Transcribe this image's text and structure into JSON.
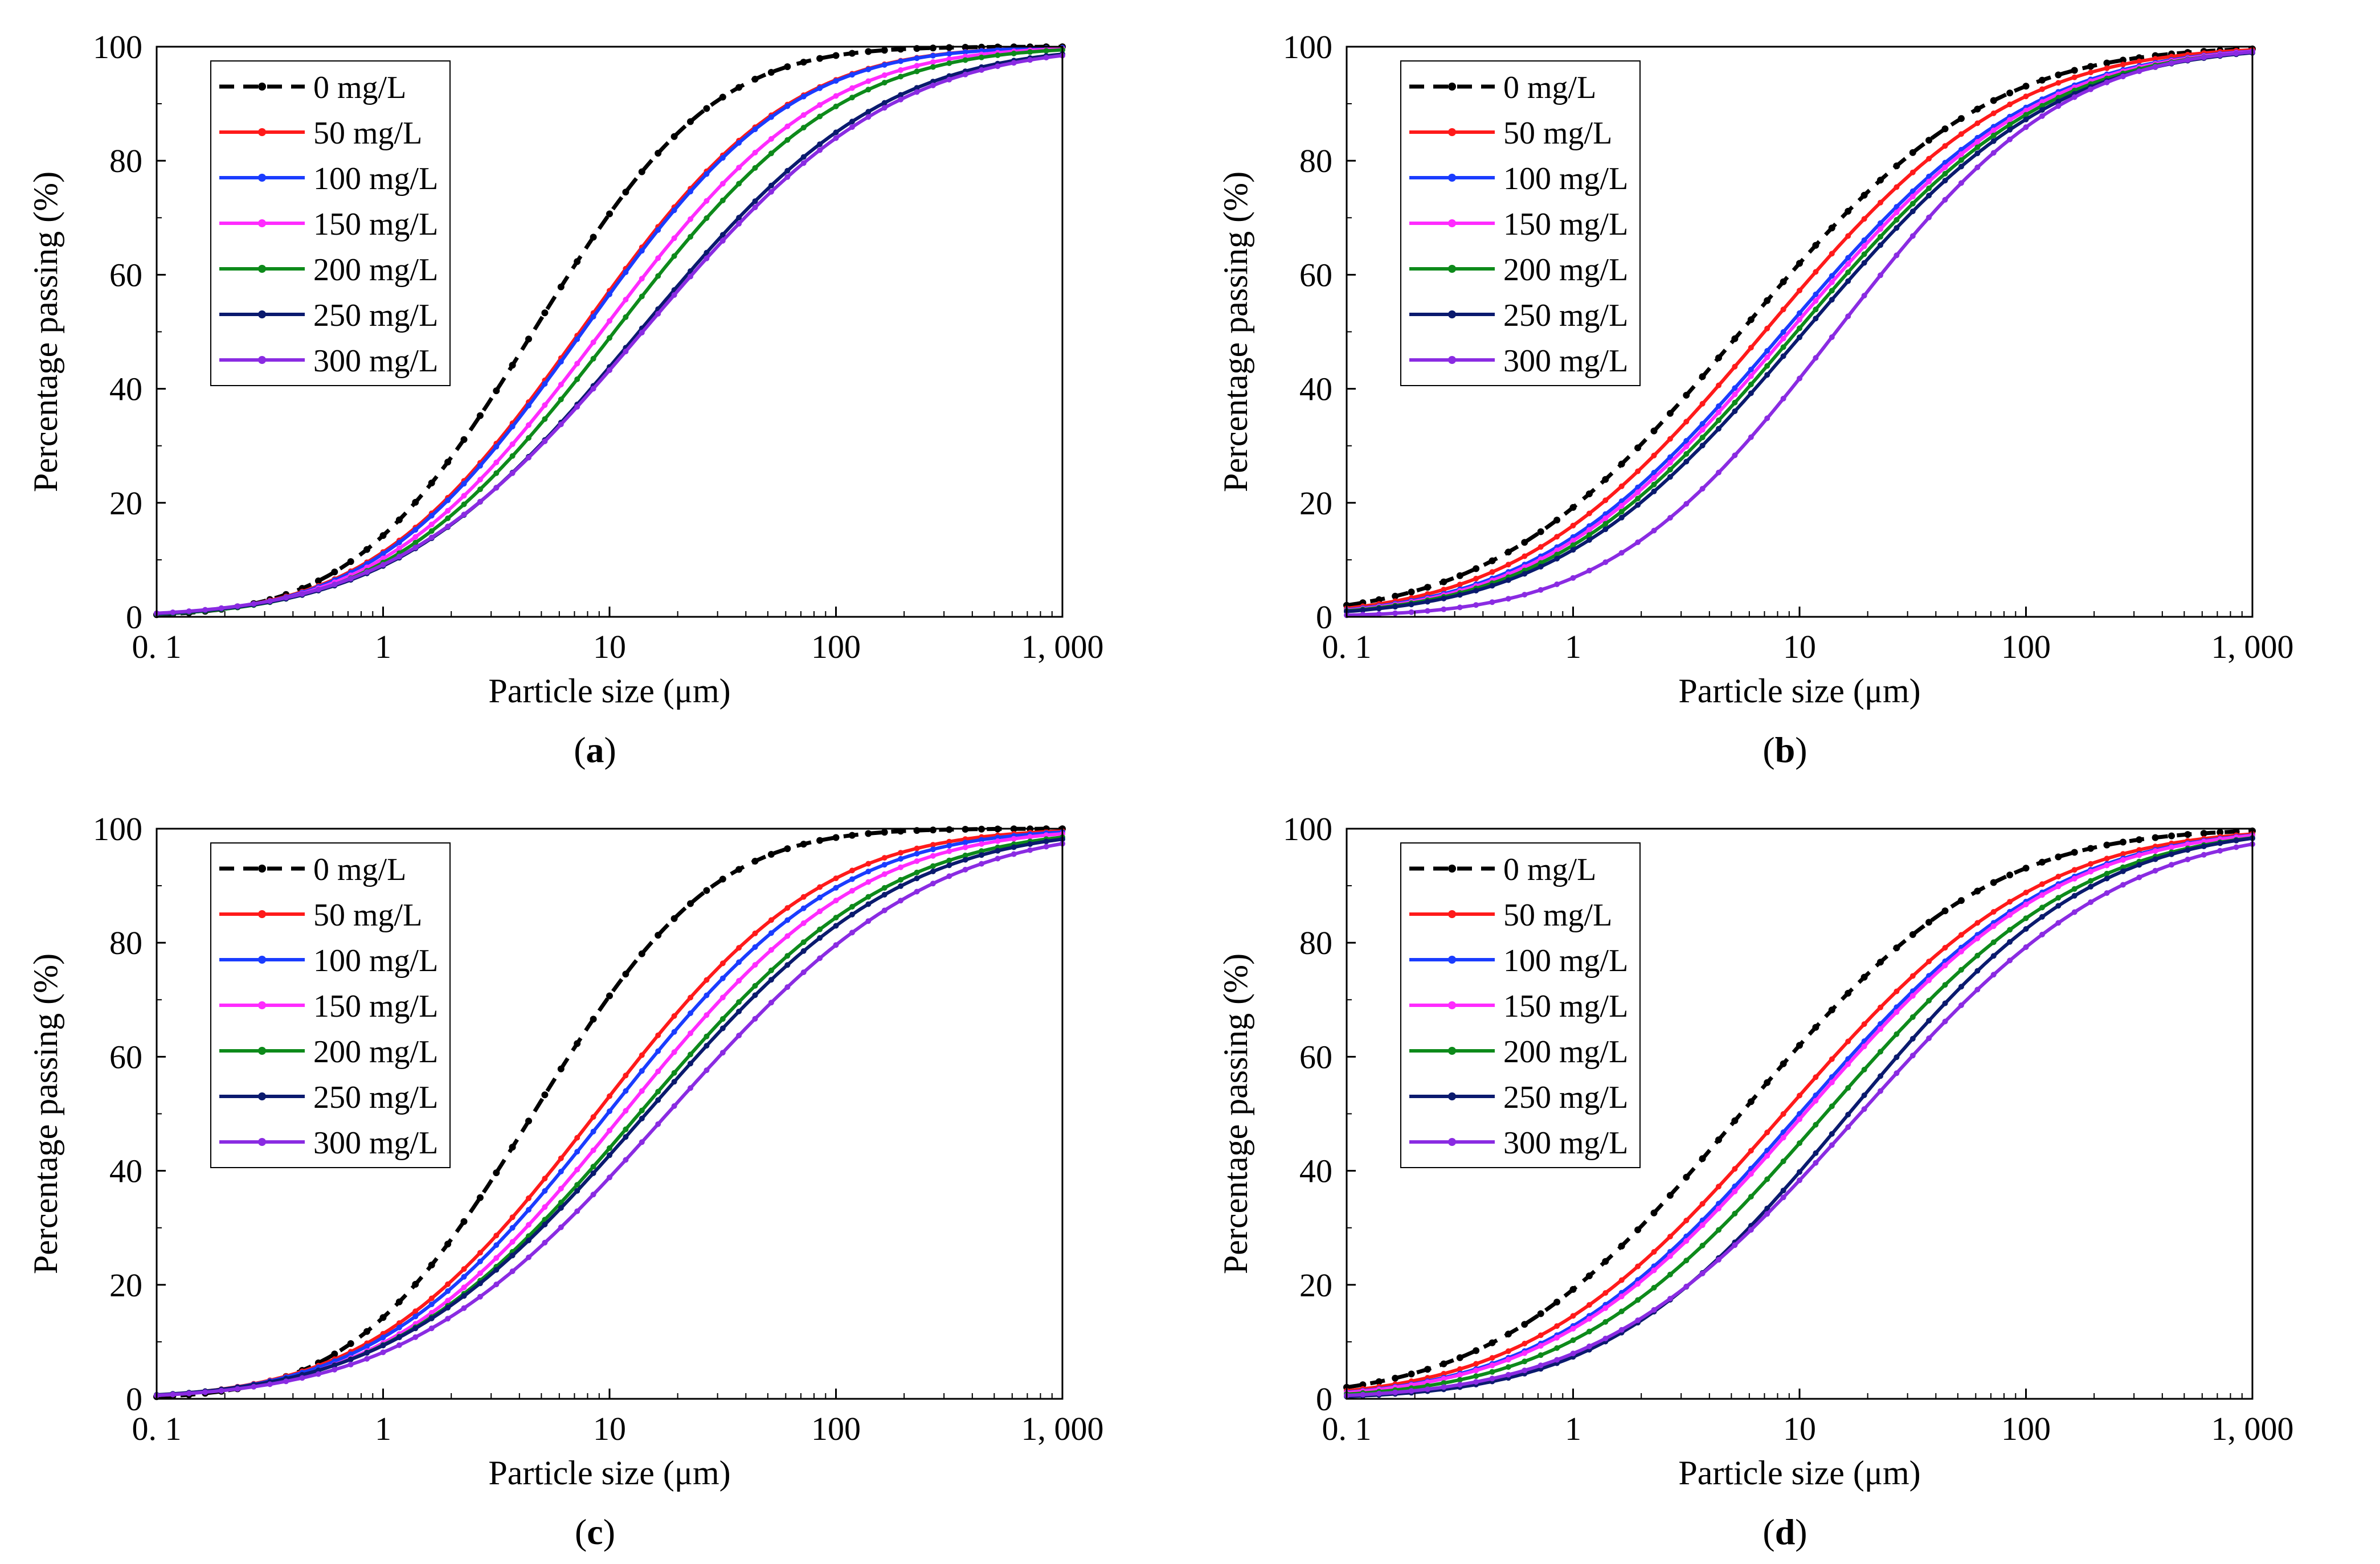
{
  "series_styles": [
    {
      "name": "0 mg/L",
      "color": "#000000",
      "dash": true
    },
    {
      "name": "50 mg/L",
      "color": "#ff1a1a",
      "dash": false
    },
    {
      "name": "100 mg/L",
      "color": "#1a3cff",
      "dash": false
    },
    {
      "name": "150 mg/L",
      "color": "#ff2bff",
      "dash": false
    },
    {
      "name": "200 mg/L",
      "color": "#0d8a1a",
      "dash": false
    },
    {
      "name": "250 mg/L",
      "color": "#0a1a6e",
      "dash": false
    },
    {
      "name": "300 mg/L",
      "color": "#8a2be2",
      "dash": false
    }
  ],
  "chart_data": [
    {
      "panel": "a",
      "caption": "a",
      "type": "line",
      "xlabel": "Particle size (μm)",
      "ylabel": "Percentage passing (%)",
      "xscale": "log",
      "xlim": [
        0.1,
        1000
      ],
      "ylim": [
        0,
        100
      ],
      "xticks": [
        0.1,
        1,
        10,
        100,
        1000
      ],
      "xtick_labels": [
        "0. 1",
        "1",
        "10",
        "100",
        "1, 000"
      ],
      "yticks": [
        0,
        20,
        40,
        60,
        80,
        100
      ],
      "ytick_labels": [
        "0",
        "20",
        "40",
        "60",
        "80",
        "100"
      ],
      "legend": "top-left",
      "series": [
        {
          "name": "0 mg/L",
          "d50": 4.6,
          "s": 0.62
        },
        {
          "name": "50 mg/L",
          "d50": 7.4,
          "s": 0.72
        },
        {
          "name": "100 mg/L",
          "d50": 7.6,
          "s": 0.72
        },
        {
          "name": "150 mg/L",
          "d50": 9.2,
          "s": 0.76
        },
        {
          "name": "200 mg/L",
          "d50": 10.5,
          "s": 0.78
        },
        {
          "name": "250 mg/L",
          "d50": 13.5,
          "s": 0.84
        },
        {
          "name": "300 mg/L",
          "d50": 14.0,
          "s": 0.86
        }
      ]
    },
    {
      "panel": "b",
      "caption": "b",
      "type": "line",
      "xlabel": "Particle size (μm)",
      "ylabel": "Percentage passing (%)",
      "xscale": "log",
      "xlim": [
        0.1,
        1000
      ],
      "ylim": [
        0,
        100
      ],
      "xticks": [
        0.1,
        1,
        10,
        100,
        1000
      ],
      "xtick_labels": [
        "0. 1",
        "1",
        "10",
        "100",
        "1, 000"
      ],
      "yticks": [
        0,
        20,
        40,
        60,
        80,
        100
      ],
      "ytick_labels": [
        "0",
        "20",
        "40",
        "60",
        "80",
        "100"
      ],
      "legend": "top-left",
      "series": [
        {
          "name": "0 mg/L",
          "d50": 5.5,
          "s": 0.85
        },
        {
          "name": "50 mg/L",
          "d50": 7.0,
          "s": 0.85
        },
        {
          "name": "100 mg/L",
          "d50": 8.5,
          "s": 0.86
        },
        {
          "name": "150 mg/L",
          "d50": 9.0,
          "s": 0.86
        },
        {
          "name": "200 mg/L",
          "d50": 9.7,
          "s": 0.86
        },
        {
          "name": "250 mg/L",
          "d50": 10.5,
          "s": 0.86
        },
        {
          "name": "300 mg/L",
          "d50": 14.5,
          "s": 0.78
        }
      ]
    },
    {
      "panel": "c",
      "caption": "c",
      "type": "line",
      "xlabel": "Particle size (μm)",
      "ylabel": "Percentage passing (%)",
      "xscale": "log",
      "xlim": [
        0.1,
        1000
      ],
      "ylim": [
        0,
        100
      ],
      "xticks": [
        0.1,
        1,
        10,
        100,
        1000
      ],
      "xtick_labels": [
        "0. 1",
        "1",
        "10",
        "100",
        "1, 000"
      ],
      "yticks": [
        0,
        20,
        40,
        60,
        80,
        100
      ],
      "ytick_labels": [
        "0",
        "20",
        "40",
        "60",
        "80",
        "100"
      ],
      "legend": "top-left",
      "series": [
        {
          "name": "0 mg/L",
          "d50": 4.6,
          "s": 0.62
        },
        {
          "name": "50 mg/L",
          "d50": 8.7,
          "s": 0.78
        },
        {
          "name": "100 mg/L",
          "d50": 9.8,
          "s": 0.8
        },
        {
          "name": "150 mg/L",
          "d50": 11.5,
          "s": 0.82
        },
        {
          "name": "200 mg/L",
          "d50": 13.5,
          "s": 0.86
        },
        {
          "name": "250 mg/L",
          "d50": 14.5,
          "s": 0.88
        },
        {
          "name": "300 mg/L",
          "d50": 18.0,
          "s": 0.9
        }
      ]
    },
    {
      "panel": "d",
      "caption": "d",
      "type": "line",
      "xlabel": "Particle size (μm)",
      "ylabel": "Percentage passing (%)",
      "xscale": "log",
      "xlim": [
        0.1,
        1000
      ],
      "ylim": [
        0,
        100
      ],
      "xticks": [
        0.1,
        1,
        10,
        100,
        1000
      ],
      "xtick_labels": [
        "0. 1",
        "1",
        "10",
        "100",
        "1, 000"
      ],
      "yticks": [
        0,
        20,
        40,
        60,
        80,
        100
      ],
      "ytick_labels": [
        "0",
        "20",
        "40",
        "60",
        "80",
        "100"
      ],
      "legend": "top-left",
      "series": [
        {
          "name": "0 mg/L",
          "d50": 5.5,
          "s": 0.85
        },
        {
          "name": "50 mg/L",
          "d50": 8.5,
          "s": 0.88
        },
        {
          "name": "100 mg/L",
          "d50": 10.0,
          "s": 0.88
        },
        {
          "name": "150 mg/L",
          "d50": 10.5,
          "s": 0.88
        },
        {
          "name": "200 mg/L",
          "d50": 13.0,
          "s": 0.88
        },
        {
          "name": "250 mg/L",
          "d50": 16.5,
          "s": 0.84
        },
        {
          "name": "300 mg/L",
          "d50": 18.5,
          "s": 0.9
        }
      ]
    }
  ]
}
